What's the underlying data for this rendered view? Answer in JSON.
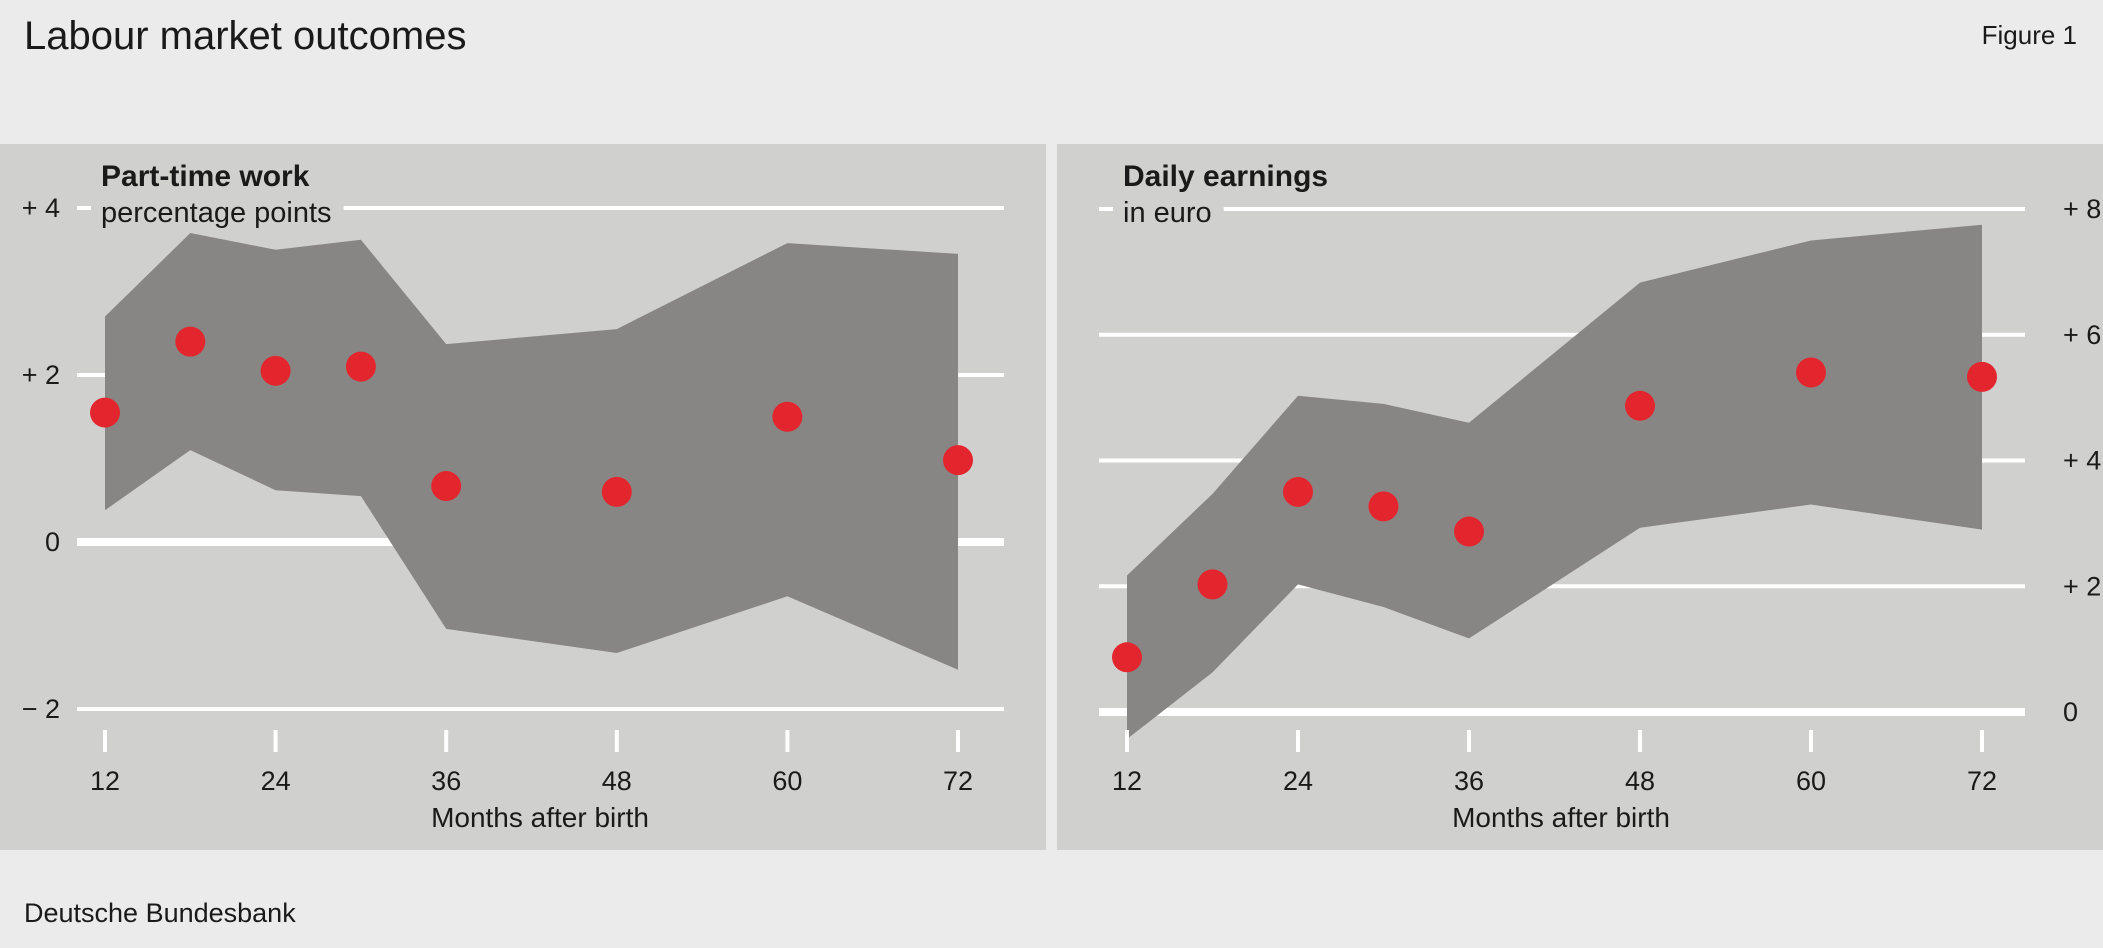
{
  "header": {
    "title": "Labour market outcomes",
    "figure_label": "Figure 1"
  },
  "footer": {
    "source": "Deutsche Bundesbank"
  },
  "colors": {
    "band": "#878684",
    "point": "#e3262e",
    "panel": "#d0d0ce",
    "grid": "#ffffff"
  },
  "chart_data": [
    {
      "type": "scatter",
      "title": "Part-time work",
      "subtitle": "percentage points",
      "xlabel": "Months after birth",
      "ylabel": "",
      "x_ticks": [
        12,
        24,
        36,
        48,
        60,
        72
      ],
      "x_tick_labels": [
        "12",
        "24",
        "36",
        "48",
        "60",
        "72"
      ],
      "y_ticks": [
        4,
        2,
        0,
        -2
      ],
      "y_tick_labels": [
        "+ 4",
        "+ 2",
        "0",
        "− 2"
      ],
      "y_axis_side": "left",
      "xlim": [
        10.5,
        73.5
      ],
      "ylim": [
        -2,
        4
      ],
      "grid": true,
      "series": [
        {
          "type": "scatter",
          "x": [
            12,
            18,
            24,
            30,
            36,
            48,
            60,
            72
          ],
          "y": [
            1.55,
            2.4,
            2.05,
            2.1,
            0.67,
            0.6,
            1.5,
            0.98
          ]
        }
      ],
      "band": {
        "x": [
          12,
          18,
          24,
          30,
          36,
          48,
          60,
          72
        ],
        "upper": [
          2.7,
          3.7,
          3.5,
          3.62,
          2.37,
          2.55,
          3.58,
          3.45
        ],
        "lower": [
          0.38,
          1.1,
          0.62,
          0.55,
          -1.04,
          -1.33,
          -0.65,
          -1.53
        ]
      }
    },
    {
      "type": "scatter",
      "title": "Daily earnings",
      "subtitle": "in euro",
      "xlabel": "Months after birth",
      "ylabel": "",
      "x_ticks": [
        12,
        24,
        36,
        48,
        60,
        72
      ],
      "x_tick_labels": [
        "12",
        "24",
        "36",
        "48",
        "60",
        "72"
      ],
      "y_ticks": [
        8,
        6,
        4,
        2,
        0
      ],
      "y_tick_labels": [
        "+ 8",
        "+ 6",
        "+ 4",
        "+ 2",
        "0"
      ],
      "y_axis_side": "right",
      "xlim": [
        10,
        73.5
      ],
      "ylim": [
        0,
        8
      ],
      "grid": true,
      "series": [
        {
          "type": "scatter",
          "x": [
            12,
            18,
            24,
            30,
            36,
            48,
            60,
            72
          ],
          "y": [
            0.87,
            2.03,
            3.5,
            3.27,
            2.87,
            4.87,
            5.4,
            5.33
          ]
        }
      ],
      "band": {
        "x": [
          12,
          18,
          24,
          30,
          36,
          48,
          60,
          72
        ],
        "upper": [
          2.17,
          3.47,
          5.03,
          4.9,
          4.6,
          6.83,
          7.5,
          7.75
        ],
        "lower": [
          -0.43,
          0.63,
          2.03,
          1.67,
          1.17,
          2.93,
          3.3,
          2.9
        ]
      }
    }
  ]
}
